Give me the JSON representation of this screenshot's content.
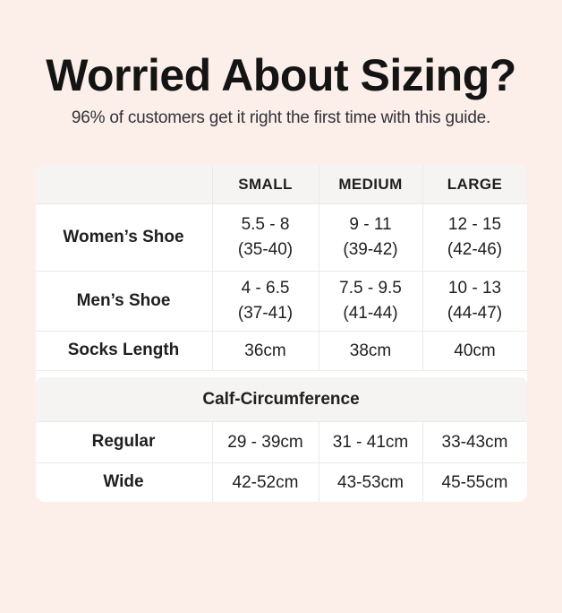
{
  "colors": {
    "page_background": "#fcefe9",
    "card_background": "#ffffff",
    "band_background": "#f5f4f2",
    "border": "#eceae7",
    "heading_text": "#141414",
    "subtitle_text": "#32323c",
    "body_text": "#1f1f1f"
  },
  "headline": {
    "title": "Worried About Sizing?",
    "subtitle": "96% of customers get it right the first time with this guide."
  },
  "size_table": {
    "column_headers": {
      "empty": "",
      "small": "SMALL",
      "medium": "MEDIUM",
      "large": "LARGE"
    },
    "womens_shoe": {
      "label": "Women’s Shoe",
      "small": [
        "5.5 - 8",
        "(35-40)"
      ],
      "medium": [
        "9 - 11",
        "(39-42)"
      ],
      "large": [
        "12 - 15",
        "(42-46)"
      ]
    },
    "mens_shoe": {
      "label": "Men’s Shoe",
      "small": [
        "4 - 6.5",
        "(37-41)"
      ],
      "medium": [
        "7.5 - 9.5",
        "(41-44)"
      ],
      "large": [
        "10 - 13",
        "(44-47)"
      ]
    },
    "socks_length": {
      "label": "Socks Length",
      "small": "36cm",
      "medium": "38cm",
      "large": "40cm"
    },
    "calf_section_label": "Calf-Circumference",
    "regular": {
      "label": "Regular",
      "small": "29 - 39cm",
      "medium": "31 - 41cm",
      "large": "33-43cm"
    },
    "wide": {
      "label": "Wide",
      "small": "42-52cm",
      "medium": "43-53cm",
      "large": "45-55cm"
    }
  }
}
